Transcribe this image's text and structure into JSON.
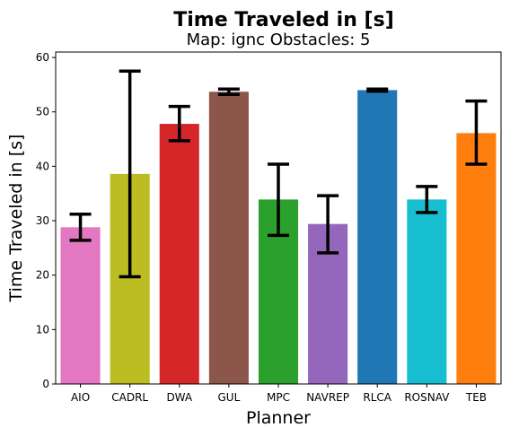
{
  "chart_data": {
    "type": "bar",
    "suptitle": "Time Traveled in [s]",
    "title": "Map: ignc Obstacles: 5",
    "xlabel": "Planner",
    "ylabel": "Time Traveled in [s]",
    "ylim": [
      0,
      61
    ],
    "yticks": [
      "0",
      "10",
      "20",
      "30",
      "40",
      "50",
      "60"
    ],
    "grid": false,
    "categories": [
      "AIO",
      "CADRL",
      "DWA",
      "GUL",
      "MPC",
      "NAVREP",
      "RLCA",
      "ROSNAV",
      "TEB"
    ],
    "values": [
      28.8,
      38.6,
      47.8,
      53.7,
      33.9,
      29.4,
      54.0,
      33.9,
      46.1
    ],
    "error_low": [
      26.4,
      19.7,
      44.7,
      53.2,
      27.3,
      24.1,
      53.8,
      31.5,
      40.4
    ],
    "error_high": [
      31.2,
      57.5,
      51.0,
      54.2,
      40.4,
      34.6,
      54.2,
      36.3,
      52.0
    ],
    "colors": [
      "#e377c2",
      "#bcbd22",
      "#d62728",
      "#8c564b",
      "#2ca02c",
      "#9467bd",
      "#1f77b4",
      "#17becf",
      "#ff7f0e"
    ]
  }
}
